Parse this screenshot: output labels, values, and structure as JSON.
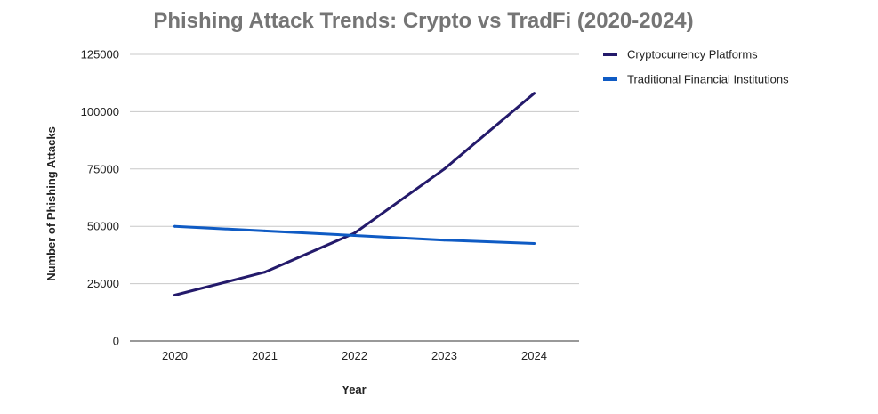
{
  "chart_data": {
    "type": "line",
    "title": "Phishing Attack Trends: Crypto vs TradFi (2020-2024)",
    "xlabel": "Year",
    "ylabel": "Number of Phishing Attacks",
    "categories": [
      "2020",
      "2021",
      "2022",
      "2023",
      "2024"
    ],
    "ylim": [
      0,
      125000
    ],
    "yticks": [
      0,
      25000,
      50000,
      75000,
      100000,
      125000
    ],
    "grid": true,
    "legend_position": "right",
    "series": [
      {
        "name": "Cryptocurrency Platforms",
        "color": "#241a6b",
        "values": [
          20000,
          30000,
          47000,
          75000,
          108000
        ]
      },
      {
        "name": "Traditional Financial Institutions",
        "color": "#0f5bc4",
        "values": [
          50000,
          48000,
          46000,
          44000,
          42500
        ]
      }
    ]
  }
}
